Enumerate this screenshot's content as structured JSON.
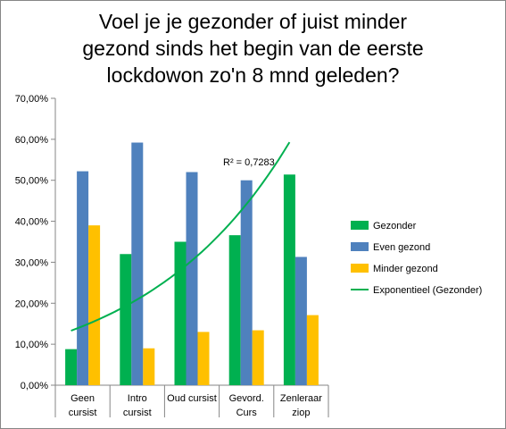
{
  "chart_data": {
    "type": "bar",
    "title_lines": [
      "Voel je je gezonder of juist minder",
      "gezond sinds het begin van de eerste",
      "lockdowon zo'n 8 mnd geleden?"
    ],
    "categories": [
      [
        "Geen",
        "cursist"
      ],
      [
        "Intro",
        "cursist"
      ],
      [
        "Oud cursist"
      ],
      [
        "Gevord.",
        "Curs"
      ],
      [
        "Zenleraar",
        "ziop"
      ]
    ],
    "series": [
      {
        "name": "Gezonder",
        "color": "#00b050",
        "values": [
          8.8,
          32.0,
          35.0,
          36.6,
          51.4
        ]
      },
      {
        "name": "Even gezond",
        "color": "#4f81bd",
        "values": [
          52.2,
          59.2,
          52.0,
          50.0,
          31.3
        ]
      },
      {
        "name": "Minder gezond",
        "color": "#ffc000",
        "values": [
          39.0,
          9.0,
          13.0,
          13.4,
          17.1
        ]
      }
    ],
    "trendline": {
      "name": "Exponentieel (Gezonder)",
      "color": "#00b050",
      "type": "exponential",
      "start": 13.3,
      "end": 59.3,
      "r2_label": "R² = 0,7283"
    },
    "yticks": [
      "0,00%",
      "10,00%",
      "20,00%",
      "30,00%",
      "40,00%",
      "50,00%",
      "60,00%",
      "70,00%"
    ],
    "ylim": [
      0,
      70
    ],
    "grid": false,
    "legend_position": "right"
  }
}
